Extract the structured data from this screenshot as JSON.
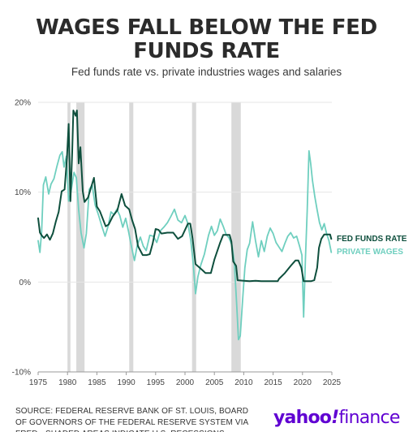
{
  "title": "WAGES FALL BELOW THE FED FUNDS RATE",
  "subtitle": "Fed funds rate vs. private industries wages and salaries",
  "source": "SOURCE: FEDERAL RESERVE BANK OF ST. LOUIS, BOARD OF GOVERNORS OF THE FEDERAL RESERVE SYSTEM VIA FRED • SHADED AREAS INDICATE U.S. RECESSIONS",
  "logo": {
    "part_a": "yahoo",
    "mark": "!",
    "part_b": "finance"
  },
  "colors": {
    "fed": "#0e4f3d",
    "wages": "#6fcfbf",
    "recession": "#d9d9d9",
    "grid": "#e6e6e6",
    "brand": "#6001d2"
  },
  "chart_data": {
    "type": "line",
    "xlim": [
      1975,
      2025
    ],
    "ylim": [
      -10,
      20
    ],
    "xticks": [
      "1975",
      "1980",
      "1985",
      "1990",
      "1995",
      "2000",
      "2005",
      "2010",
      "2015",
      "2020",
      "2025"
    ],
    "yticks": [
      "20%",
      "10%",
      "0%",
      "-10%"
    ],
    "recessions": [
      [
        1980.0,
        1980.5
      ],
      [
        1981.5,
        1982.9
      ],
      [
        1990.5,
        1991.2
      ],
      [
        2001.2,
        2001.9
      ],
      [
        2007.9,
        2009.5
      ]
    ],
    "series": [
      {
        "name": "FED FUNDS RATE",
        "points": [
          [
            1975,
            7.1
          ],
          [
            1975.3,
            5.5
          ],
          [
            1975.6,
            5.2
          ],
          [
            1976,
            4.9
          ],
          [
            1976.5,
            5.3
          ],
          [
            1977,
            4.7
          ],
          [
            1977.5,
            5.4
          ],
          [
            1978,
            6.7
          ],
          [
            1978.5,
            7.8
          ],
          [
            1979,
            10.1
          ],
          [
            1979.5,
            10.3
          ],
          [
            1979.9,
            13.8
          ],
          [
            1980.2,
            17.6
          ],
          [
            1980.5,
            9.0
          ],
          [
            1980.8,
            14.5
          ],
          [
            1981,
            19.1
          ],
          [
            1981.4,
            18.5
          ],
          [
            1981.6,
            19.1
          ],
          [
            1981.9,
            13.2
          ],
          [
            1982.2,
            15.0
          ],
          [
            1982.6,
            10.1
          ],
          [
            1982.9,
            8.9
          ],
          [
            1983.5,
            9.4
          ],
          [
            1984.5,
            11.6
          ],
          [
            1985,
            8.4
          ],
          [
            1985.5,
            7.9
          ],
          [
            1986.5,
            6.2
          ],
          [
            1987,
            6.4
          ],
          [
            1987.7,
            7.3
          ],
          [
            1988.5,
            8.0
          ],
          [
            1989.2,
            9.8
          ],
          [
            1989.8,
            8.5
          ],
          [
            1990.5,
            8.1
          ],
          [
            1991,
            6.9
          ],
          [
            1991.5,
            5.9
          ],
          [
            1992,
            4.0
          ],
          [
            1992.8,
            3.0
          ],
          [
            1993.5,
            3.0
          ],
          [
            1994,
            3.1
          ],
          [
            1994.5,
            4.3
          ],
          [
            1995,
            5.9
          ],
          [
            1995.5,
            5.8
          ],
          [
            1996,
            5.4
          ],
          [
            1997,
            5.5
          ],
          [
            1998,
            5.5
          ],
          [
            1998.8,
            4.8
          ],
          [
            1999.5,
            5.1
          ],
          [
            2000.5,
            6.5
          ],
          [
            2000.9,
            6.5
          ],
          [
            2001.3,
            4.8
          ],
          [
            2001.8,
            2.0
          ],
          [
            2002.3,
            1.7
          ],
          [
            2003,
            1.3
          ],
          [
            2003.5,
            1.0
          ],
          [
            2004.4,
            1.0
          ],
          [
            2005,
            2.5
          ],
          [
            2006,
            4.4
          ],
          [
            2006.5,
            5.25
          ],
          [
            2007.6,
            5.25
          ],
          [
            2007.9,
            4.5
          ],
          [
            2008.2,
            2.3
          ],
          [
            2008.7,
            1.8
          ],
          [
            2008.95,
            0.2
          ],
          [
            2010,
            0.15
          ],
          [
            2011,
            0.1
          ],
          [
            2012,
            0.15
          ],
          [
            2013,
            0.1
          ],
          [
            2014,
            0.1
          ],
          [
            2015.8,
            0.1
          ],
          [
            2016,
            0.35
          ],
          [
            2017,
            1.0
          ],
          [
            2018,
            1.8
          ],
          [
            2018.8,
            2.4
          ],
          [
            2019.3,
            2.4
          ],
          [
            2019.8,
            1.6
          ],
          [
            2020.2,
            0.1
          ],
          [
            2021.5,
            0.1
          ],
          [
            2022,
            0.2
          ],
          [
            2022.5,
            1.6
          ],
          [
            2022.8,
            3.8
          ],
          [
            2023.2,
            4.8
          ],
          [
            2023.7,
            5.3
          ],
          [
            2024.7,
            5.3
          ],
          [
            2024.9,
            4.8
          ]
        ]
      },
      {
        "name": "PRIVATE WAGES",
        "points": [
          [
            1975,
            4.6
          ],
          [
            1975.3,
            3.3
          ],
          [
            1975.6,
            5.6
          ],
          [
            1975.9,
            10.8
          ],
          [
            1976.3,
            11.7
          ],
          [
            1976.8,
            9.8
          ],
          [
            1977.2,
            10.9
          ],
          [
            1977.7,
            11.5
          ],
          [
            1978.2,
            12.9
          ],
          [
            1978.7,
            14.1
          ],
          [
            1979.1,
            14.5
          ],
          [
            1979.4,
            12.8
          ],
          [
            1979.8,
            14.0
          ],
          [
            1980.2,
            9.0
          ],
          [
            1980.6,
            10.1
          ],
          [
            1981.1,
            12.2
          ],
          [
            1981.5,
            11.6
          ],
          [
            1981.9,
            8.0
          ],
          [
            1982.3,
            5.5
          ],
          [
            1982.8,
            3.8
          ],
          [
            1983.2,
            5.4
          ],
          [
            1983.7,
            10.3
          ],
          [
            1984.2,
            10.8
          ],
          [
            1984.7,
            8.6
          ],
          [
            1985.3,
            7.4
          ],
          [
            1985.8,
            6.3
          ],
          [
            1986.4,
            5.1
          ],
          [
            1986.9,
            6.2
          ],
          [
            1987.4,
            7.8
          ],
          [
            1987.9,
            7.5
          ],
          [
            1988.4,
            8.1
          ],
          [
            1988.9,
            7.4
          ],
          [
            1989.4,
            6.1
          ],
          [
            1989.9,
            7.1
          ],
          [
            1990.4,
            5.6
          ],
          [
            1990.9,
            3.9
          ],
          [
            1991.4,
            2.4
          ],
          [
            1991.9,
            4.2
          ],
          [
            1992.4,
            5.0
          ],
          [
            1992.9,
            4.0
          ],
          [
            1993.4,
            3.5
          ],
          [
            1994,
            5.2
          ],
          [
            1994.6,
            5.1
          ],
          [
            1995.2,
            4.4
          ],
          [
            1995.8,
            5.7
          ],
          [
            1996.4,
            6.1
          ],
          [
            1997,
            6.6
          ],
          [
            1997.6,
            7.3
          ],
          [
            1998.2,
            8.1
          ],
          [
            1998.8,
            6.9
          ],
          [
            1999.4,
            6.6
          ],
          [
            2000,
            7.4
          ],
          [
            2000.5,
            6.5
          ],
          [
            2001,
            4.6
          ],
          [
            2001.4,
            2.1
          ],
          [
            2001.8,
            -1.3
          ],
          [
            2002.2,
            0.6
          ],
          [
            2002.7,
            1.9
          ],
          [
            2003.3,
            3.1
          ],
          [
            2004,
            5.2
          ],
          [
            2004.5,
            6.2
          ],
          [
            2005,
            5.2
          ],
          [
            2005.5,
            5.7
          ],
          [
            2006,
            7.0
          ],
          [
            2006.5,
            6.2
          ],
          [
            2007,
            5.3
          ],
          [
            2007.5,
            4.9
          ],
          [
            2008,
            4.1
          ],
          [
            2008.4,
            2.2
          ],
          [
            2008.8,
            -2.5
          ],
          [
            2009.1,
            -6.4
          ],
          [
            2009.4,
            -6.0
          ],
          [
            2009.8,
            -2.0
          ],
          [
            2010.2,
            1.6
          ],
          [
            2010.6,
            3.6
          ],
          [
            2011,
            4.3
          ],
          [
            2011.5,
            6.7
          ],
          [
            2012,
            4.6
          ],
          [
            2012.5,
            2.8
          ],
          [
            2013,
            4.6
          ],
          [
            2013.5,
            3.4
          ],
          [
            2014,
            5.1
          ],
          [
            2014.5,
            6.0
          ],
          [
            2015,
            5.4
          ],
          [
            2015.5,
            4.4
          ],
          [
            2016,
            3.9
          ],
          [
            2016.5,
            3.4
          ],
          [
            2017,
            4.3
          ],
          [
            2017.5,
            5.1
          ],
          [
            2018,
            5.5
          ],
          [
            2018.5,
            4.9
          ],
          [
            2019,
            5.1
          ],
          [
            2019.5,
            4.0
          ],
          [
            2019.9,
            3.0
          ],
          [
            2020.2,
            -3.9
          ],
          [
            2020.5,
            2.5
          ],
          [
            2020.8,
            7.9
          ],
          [
            2021.1,
            14.6
          ],
          [
            2021.4,
            13.2
          ],
          [
            2021.7,
            11.3
          ],
          [
            2022.1,
            9.5
          ],
          [
            2022.5,
            8.0
          ],
          [
            2022.9,
            6.6
          ],
          [
            2023.3,
            5.8
          ],
          [
            2023.7,
            6.5
          ],
          [
            2024.1,
            5.4
          ],
          [
            2024.5,
            4.6
          ],
          [
            2024.9,
            3.3
          ]
        ]
      }
    ]
  }
}
